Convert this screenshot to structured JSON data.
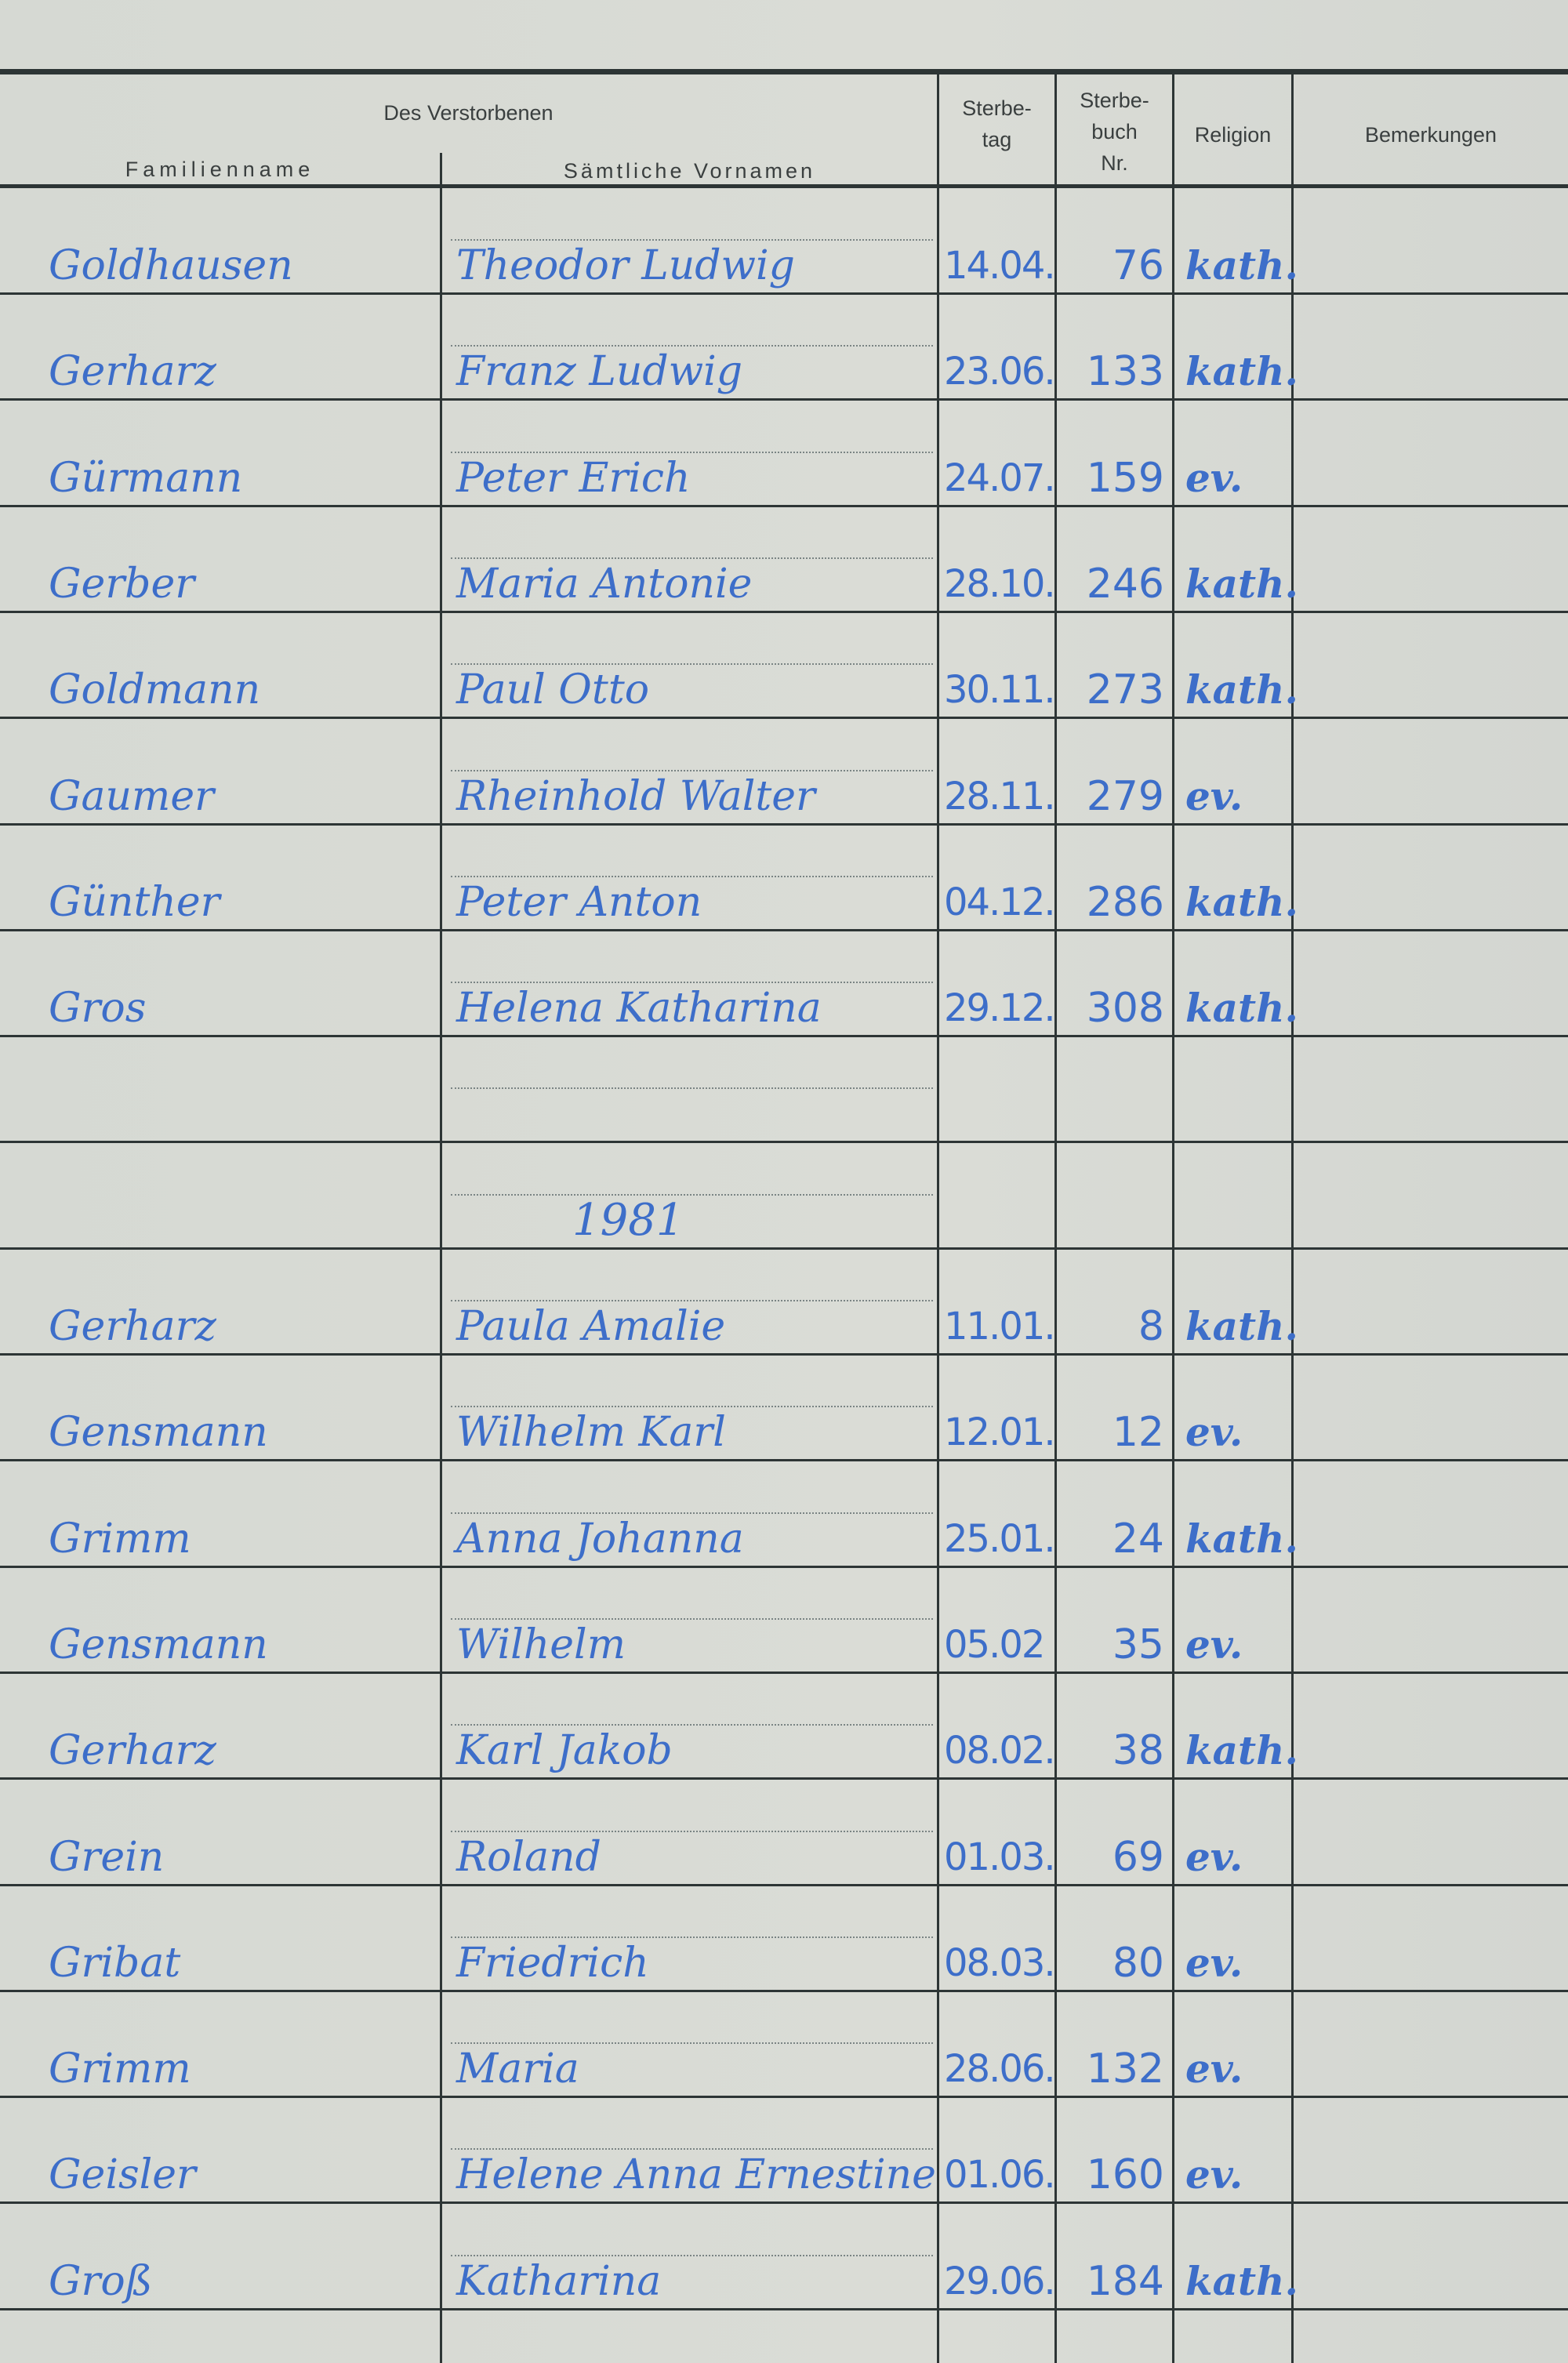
{
  "header": {
    "group_label": "Des Verstorbenen",
    "columns": {
      "familienname": "Familienname",
      "vornamen": "Sämtliche Vornamen",
      "sterbetag_1": "Sterbe-",
      "sterbetag_2": "tag",
      "sterbebuch_1": "Sterbe-",
      "sterbebuch_2": "buch",
      "sterbebuch_3": "Nr.",
      "religion": "Religion",
      "bemerkungen": "Bemerkungen"
    }
  },
  "rows": [
    {
      "familienname": "Goldhausen",
      "vornamen": "Theodor Ludwig",
      "sterbetag": "14.04.",
      "nr": "76",
      "religion": "kath."
    },
    {
      "familienname": "Gerharz",
      "vornamen": "Franz Ludwig",
      "sterbetag": "23.06.",
      "nr": "133",
      "religion": "kath."
    },
    {
      "familienname": "Gürmann",
      "vornamen": "Peter Erich",
      "sterbetag": "24.07.",
      "nr": "159",
      "religion": "ev."
    },
    {
      "familienname": "Gerber",
      "vornamen": "Maria Antonie",
      "sterbetag": "28.10.",
      "nr": "246",
      "religion": "kath."
    },
    {
      "familienname": "Goldmann",
      "vornamen": "Paul Otto",
      "sterbetag": "30.11.",
      "nr": "273",
      "religion": "kath."
    },
    {
      "familienname": "Gaumer",
      "vornamen": "Rheinhold Walter",
      "sterbetag": "28.11.",
      "nr": "279",
      "religion": "ev."
    },
    {
      "familienname": "Günther",
      "vornamen": "Peter Anton",
      "sterbetag": "04.12.",
      "nr": "286",
      "religion": "kath."
    },
    {
      "familienname": "Gros",
      "vornamen": "Helena Katharina",
      "sterbetag": "29.12.",
      "nr": "308",
      "religion": "kath."
    },
    {
      "blank": true
    },
    {
      "year": "1981"
    },
    {
      "familienname": "Gerharz",
      "vornamen": "Paula Amalie",
      "sterbetag": "11.01.",
      "nr": "8",
      "religion": "kath."
    },
    {
      "familienname": "Gensmann",
      "vornamen": "Wilhelm Karl",
      "sterbetag": "12.01.",
      "nr": "12",
      "religion": "ev."
    },
    {
      "familienname": "Grimm",
      "vornamen": "Anna Johanna",
      "sterbetag": "25.01.",
      "nr": "24",
      "religion": "kath."
    },
    {
      "familienname": "Gensmann",
      "vornamen": "Wilhelm",
      "sterbetag": "05.02",
      "nr": "35",
      "religion": "ev."
    },
    {
      "familienname": "Gerharz",
      "vornamen": "Karl Jakob",
      "sterbetag": "08.02.",
      "nr": "38",
      "religion": "kath."
    },
    {
      "familienname": "Grein",
      "vornamen": "Roland",
      "sterbetag": "01.03.",
      "nr": "69",
      "religion": "ev."
    },
    {
      "familienname": "Gribat",
      "vornamen": "Friedrich",
      "sterbetag": "08.03.",
      "nr": "80",
      "religion": "ev."
    },
    {
      "familienname": "Grimm",
      "vornamen": "Maria",
      "sterbetag": "28.06.",
      "nr": "132",
      "religion": "ev."
    },
    {
      "familienname": "Geisler",
      "vornamen": "Helene Anna Ernestine",
      "sterbetag": "01.06.",
      "nr": "160",
      "religion": "ev."
    },
    {
      "familienname": "Groß",
      "vornamen": "Katharina",
      "sterbetag": "29.06.",
      "nr": "184",
      "religion": "kath."
    }
  ],
  "colors": {
    "ink": "#3d6ec9",
    "rule": "#2d3535",
    "paper": "#d8dbd5"
  }
}
